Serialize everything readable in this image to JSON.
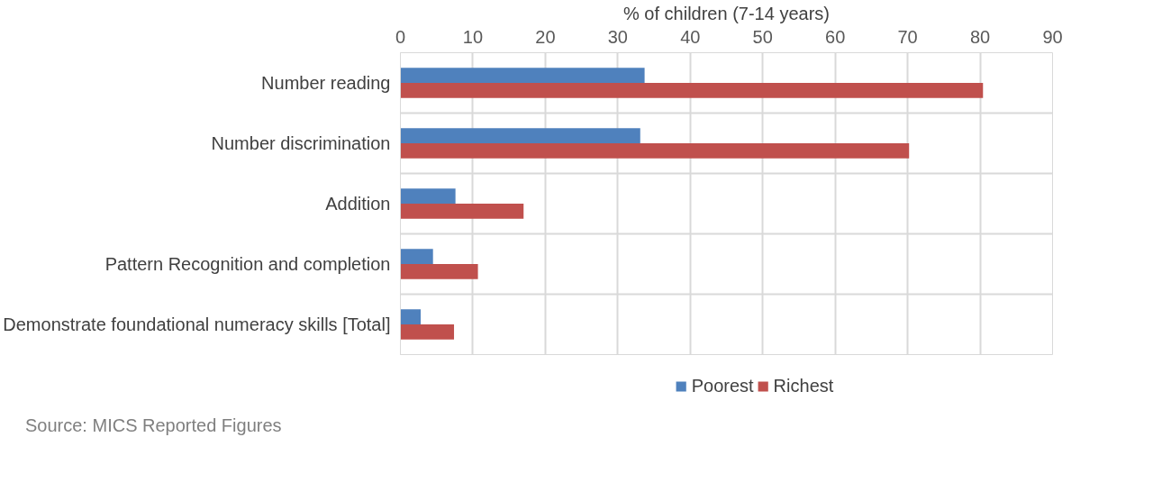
{
  "chart_data": {
    "type": "bar",
    "orientation": "horizontal",
    "xlabel": "% of children (7-14 years)",
    "categories": [
      "Number reading",
      "Number discrimination",
      "Addition",
      "Pattern Recognition and completion",
      "Demonstrate foundational numeracy skills [Total]"
    ],
    "series": [
      {
        "name": "Poorest",
        "color": "#4f81bd",
        "values": [
          33.7,
          33.1,
          7.6,
          4.5,
          2.8
        ]
      },
      {
        "name": "Richest",
        "color": "#c0504d",
        "values": [
          80.4,
          70.2,
          17.0,
          10.7,
          7.4
        ]
      }
    ],
    "xlim": [
      0,
      90
    ],
    "xticks": [
      0,
      10,
      20,
      30,
      40,
      50,
      60,
      70,
      80,
      90
    ],
    "grid": true,
    "legend": "bottom",
    "annotations": [
      "Source: MICS Reported Figures"
    ]
  }
}
